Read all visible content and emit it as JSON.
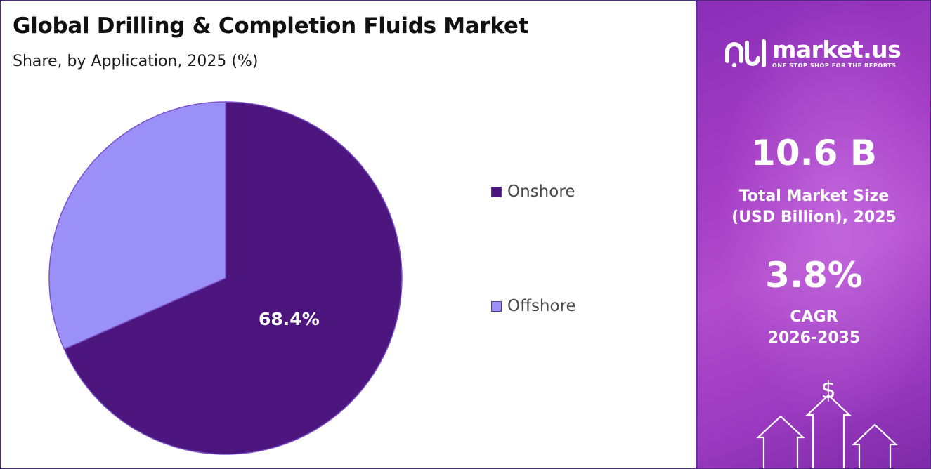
{
  "header": {
    "title": "Global Drilling & Completion Fluids Market",
    "subtitle": "Share, by Application, 2025 (%)"
  },
  "chart_data": {
    "type": "pie",
    "categories": [
      "Onshore",
      "Offshore"
    ],
    "values": [
      68.4,
      31.6
    ],
    "colors": [
      "#4d157e",
      "#9b8ff8"
    ],
    "data_labels": [
      "68.4%",
      ""
    ],
    "legend_position": "right"
  },
  "sidebar": {
    "logo": {
      "name": "market.us",
      "tagline": "ONE STOP SHOP FOR THE REPORTS",
      "icon": "market-us-logo-icon"
    },
    "market_size_value": "10.6 B",
    "market_size_label_line1": "Total Market Size",
    "market_size_label_line2": "(USD Billion), 2025",
    "cagr_value": "3.8%",
    "cagr_label_line1": "CAGR",
    "cagr_label_line2": "2026-2035",
    "currency_symbol": "$",
    "background_color": "#a43cc4"
  }
}
